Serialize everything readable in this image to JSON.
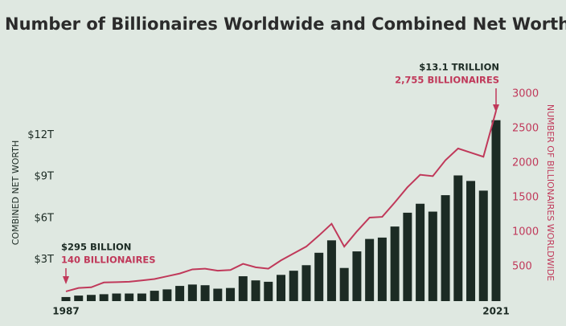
{
  "chart_data": {
    "type": "bar",
    "title": "Number of Billionaires Worldwide and Combined Net Worth",
    "y_label": "COMBINED NET WORTH",
    "y2_label": "NUMBER OF BILLIONAIRES WORLDWIDE",
    "categories": [
      "1987",
      null,
      null,
      null,
      null,
      null,
      null,
      null,
      null,
      null,
      null,
      null,
      null,
      null,
      null,
      null,
      null,
      null,
      null,
      null,
      null,
      null,
      null,
      null,
      null,
      null,
      null,
      null,
      null,
      null,
      null,
      null,
      null,
      null,
      "2021"
    ],
    "series": [
      {
        "name": "Combined net worth",
        "type": "bar",
        "axis": "y",
        "color": "#1c2b24",
        "values": [
          0.295,
          0.4,
          0.45,
          0.5,
          0.55,
          0.55,
          0.55,
          0.75,
          0.85,
          1.1,
          1.2,
          1.15,
          0.9,
          0.95,
          1.8,
          1.5,
          1.4,
          1.9,
          2.2,
          2.6,
          3.5,
          4.4,
          2.4,
          3.6,
          4.5,
          4.6,
          5.4,
          6.4,
          7.05,
          6.48,
          7.67,
          9.1,
          8.7,
          8.0,
          13.1
        ]
      },
      {
        "name": "Number of billionaires",
        "type": "line",
        "axis": "y2",
        "color": "#c0395a",
        "values": [
          140,
          190,
          200,
          270,
          274,
          280,
          300,
          320,
          360,
          400,
          460,
          470,
          440,
          450,
          540,
          490,
          470,
          590,
          690,
          790,
          950,
          1120,
          790,
          1010,
          1210,
          1220,
          1430,
          1650,
          1830,
          1810,
          2040,
          2210,
          2150,
          2090,
          2755
        ]
      }
    ],
    "ylim": [
      0,
      15
    ],
    "yticks": [
      {
        "value": 3,
        "label": "$3T"
      },
      {
        "value": 6,
        "label": "$6T"
      },
      {
        "value": 9,
        "label": "$9T"
      },
      {
        "value": 12,
        "label": "$12T"
      }
    ],
    "y2lim": [
      0,
      3000
    ],
    "y2ticks": [
      500,
      1000,
      1500,
      2000,
      2500,
      3000
    ],
    "annotations": [
      {
        "index": 0,
        "lines": [
          "$295 BILLION",
          "140 BILLIONAIRES"
        ]
      },
      {
        "index": 34,
        "lines": [
          "$13.1 TRILLION",
          "2,755 BILLIONAIRES"
        ]
      }
    ]
  }
}
